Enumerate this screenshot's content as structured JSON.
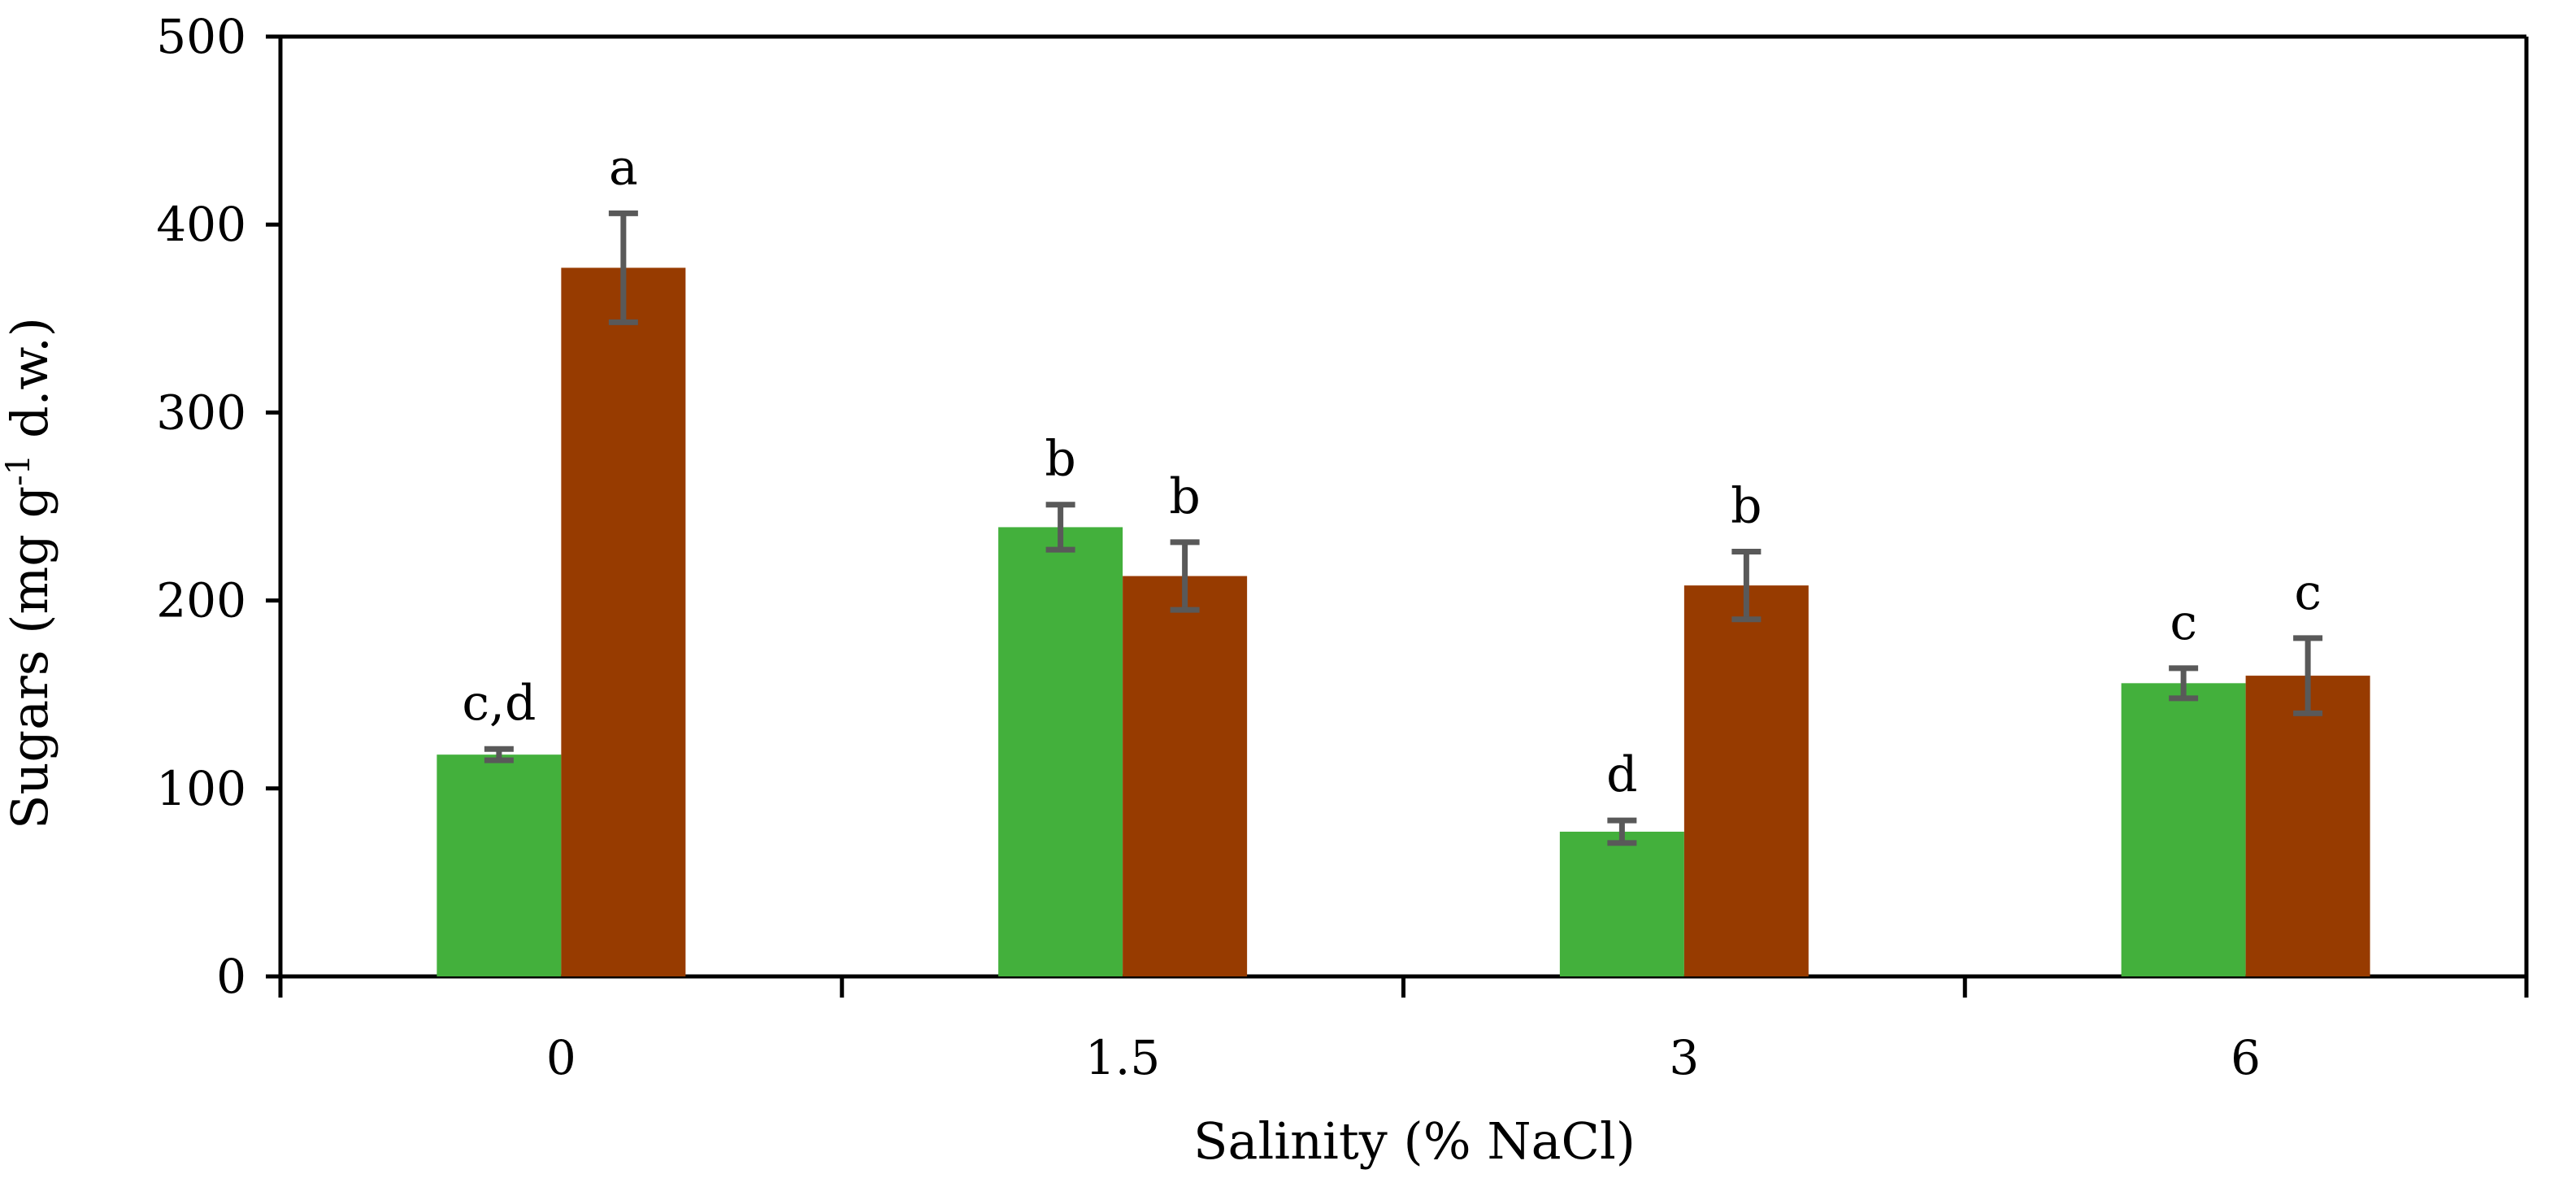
{
  "chart_data": {
    "type": "bar",
    "title": "",
    "xlabel": "Salinity (% NaCl)",
    "ylabel": "Sugars (mg g",
    "ylabel_superscript": "-1",
    "ylabel_tail": " d.w.)",
    "ylim": [
      0,
      500
    ],
    "yticks": [
      0,
      100,
      200,
      300,
      400,
      500
    ],
    "categories": [
      "0",
      "1.5",
      "3",
      "6"
    ],
    "series": [
      {
        "name": "series-1",
        "color": "#43b03c",
        "values": [
          118,
          239,
          77,
          156
        ],
        "errors": [
          3,
          12,
          6,
          8
        ],
        "labels": [
          "c,d",
          "b",
          "d",
          "c"
        ]
      },
      {
        "name": "series-2",
        "color": "#973b00",
        "values": [
          377,
          213,
          208,
          160
        ],
        "errors": [
          29,
          18,
          18,
          20
        ],
        "labels": [
          "a",
          "b",
          "b",
          "c"
        ]
      }
    ],
    "grid": false,
    "legend": "none"
  }
}
